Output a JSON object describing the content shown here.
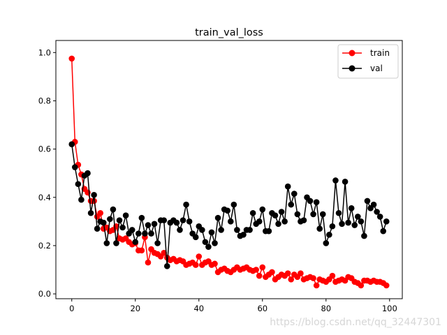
{
  "chart_data": {
    "type": "line",
    "title": "train_val_loss",
    "xlabel": "",
    "ylabel": "",
    "xlim": [
      -5,
      104
    ],
    "ylim": [
      -0.02,
      1.05
    ],
    "xticks": [
      0,
      20,
      40,
      60,
      80,
      100
    ],
    "yticks": [
      0.0,
      0.2,
      0.4,
      0.6,
      0.8,
      1.0
    ],
    "xtick_labels": [
      "0",
      "20",
      "40",
      "60",
      "80",
      "100"
    ],
    "ytick_labels": [
      "0.0",
      "0.2",
      "0.4",
      "0.6",
      "0.8",
      "1.0"
    ],
    "legend": {
      "position": "top-right",
      "entries": [
        "train",
        "val"
      ]
    },
    "series": [
      {
        "name": "train",
        "color": "#ff0000",
        "marker": "circle",
        "x": [
          0,
          1,
          2,
          3,
          4,
          5,
          6,
          7,
          8,
          9,
          10,
          11,
          12,
          13,
          14,
          15,
          16,
          17,
          18,
          19,
          20,
          21,
          22,
          23,
          24,
          25,
          26,
          27,
          28,
          29,
          30,
          31,
          32,
          33,
          34,
          35,
          36,
          37,
          38,
          39,
          40,
          41,
          42,
          43,
          44,
          45,
          46,
          47,
          48,
          49,
          50,
          51,
          52,
          53,
          54,
          55,
          56,
          57,
          58,
          59,
          60,
          61,
          62,
          63,
          64,
          65,
          66,
          67,
          68,
          69,
          70,
          71,
          72,
          73,
          74,
          75,
          76,
          77,
          78,
          79,
          80,
          81,
          82,
          83,
          84,
          85,
          86,
          87,
          88,
          89,
          90,
          91,
          92,
          93,
          94,
          95,
          96,
          97,
          98,
          99
        ],
        "values": [
          0.975,
          0.63,
          0.535,
          0.495,
          0.435,
          0.42,
          0.385,
          0.385,
          0.32,
          0.335,
          0.27,
          0.275,
          0.26,
          0.265,
          0.28,
          0.23,
          0.225,
          0.23,
          0.215,
          0.205,
          0.21,
          0.18,
          0.18,
          0.235,
          0.13,
          0.185,
          0.17,
          0.165,
          0.155,
          0.17,
          0.15,
          0.14,
          0.145,
          0.135,
          0.14,
          0.135,
          0.12,
          0.125,
          0.13,
          0.12,
          0.155,
          0.12,
          0.13,
          0.135,
          0.12,
          0.125,
          0.09,
          0.1,
          0.105,
          0.095,
          0.09,
          0.1,
          0.11,
          0.1,
          0.105,
          0.11,
          0.1,
          0.095,
          0.1,
          0.075,
          0.11,
          0.07,
          0.08,
          0.09,
          0.06,
          0.07,
          0.08,
          0.075,
          0.085,
          0.06,
          0.08,
          0.07,
          0.085,
          0.06,
          0.065,
          0.07,
          0.065,
          0.035,
          0.06,
          0.055,
          0.05,
          0.06,
          0.075,
          0.05,
          0.055,
          0.06,
          0.055,
          0.07,
          0.065,
          0.05,
          0.045,
          0.035,
          0.055,
          0.055,
          0.05,
          0.055,
          0.05,
          0.05,
          0.045,
          0.035
        ]
      },
      {
        "name": "val",
        "color": "#000000",
        "marker": "circle",
        "x": [
          0,
          1,
          2,
          3,
          4,
          5,
          6,
          7,
          8,
          9,
          10,
          11,
          12,
          13,
          14,
          15,
          16,
          17,
          18,
          19,
          20,
          21,
          22,
          23,
          24,
          25,
          26,
          27,
          28,
          29,
          30,
          31,
          32,
          33,
          34,
          35,
          36,
          37,
          38,
          39,
          40,
          41,
          42,
          43,
          44,
          45,
          46,
          47,
          48,
          49,
          50,
          51,
          52,
          53,
          54,
          55,
          56,
          57,
          58,
          59,
          60,
          61,
          62,
          63,
          64,
          65,
          66,
          67,
          68,
          69,
          70,
          71,
          72,
          73,
          74,
          75,
          76,
          77,
          78,
          79,
          80,
          81,
          82,
          83,
          84,
          85,
          86,
          87,
          88,
          89,
          90,
          91,
          92,
          93,
          94,
          95,
          96,
          97,
          98,
          99
        ],
        "values": [
          0.62,
          0.525,
          0.455,
          0.39,
          0.49,
          0.5,
          0.335,
          0.41,
          0.27,
          0.3,
          0.295,
          0.21,
          0.31,
          0.35,
          0.21,
          0.305,
          0.275,
          0.325,
          0.25,
          0.265,
          0.215,
          0.25,
          0.315,
          0.25,
          0.285,
          0.25,
          0.29,
          0.21,
          0.305,
          0.305,
          0.115,
          0.295,
          0.305,
          0.295,
          0.265,
          0.305,
          0.37,
          0.3,
          0.25,
          0.235,
          0.28,
          0.265,
          0.215,
          0.195,
          0.255,
          0.21,
          0.315,
          0.265,
          0.35,
          0.345,
          0.3,
          0.37,
          0.265,
          0.24,
          0.245,
          0.265,
          0.265,
          0.335,
          0.29,
          0.3,
          0.35,
          0.26,
          0.26,
          0.335,
          0.325,
          0.29,
          0.34,
          0.3,
          0.445,
          0.37,
          0.415,
          0.33,
          0.3,
          0.305,
          0.4,
          0.385,
          0.33,
          0.38,
          0.27,
          0.33,
          0.21,
          0.245,
          0.28,
          0.47,
          0.335,
          0.29,
          0.465,
          0.295,
          0.355,
          0.285,
          0.32,
          0.3,
          0.24,
          0.385,
          0.355,
          0.37,
          0.34,
          0.32,
          0.26,
          0.3
        ]
      }
    ]
  },
  "watermark": "https://blog.csdn.net/qq_32447301"
}
